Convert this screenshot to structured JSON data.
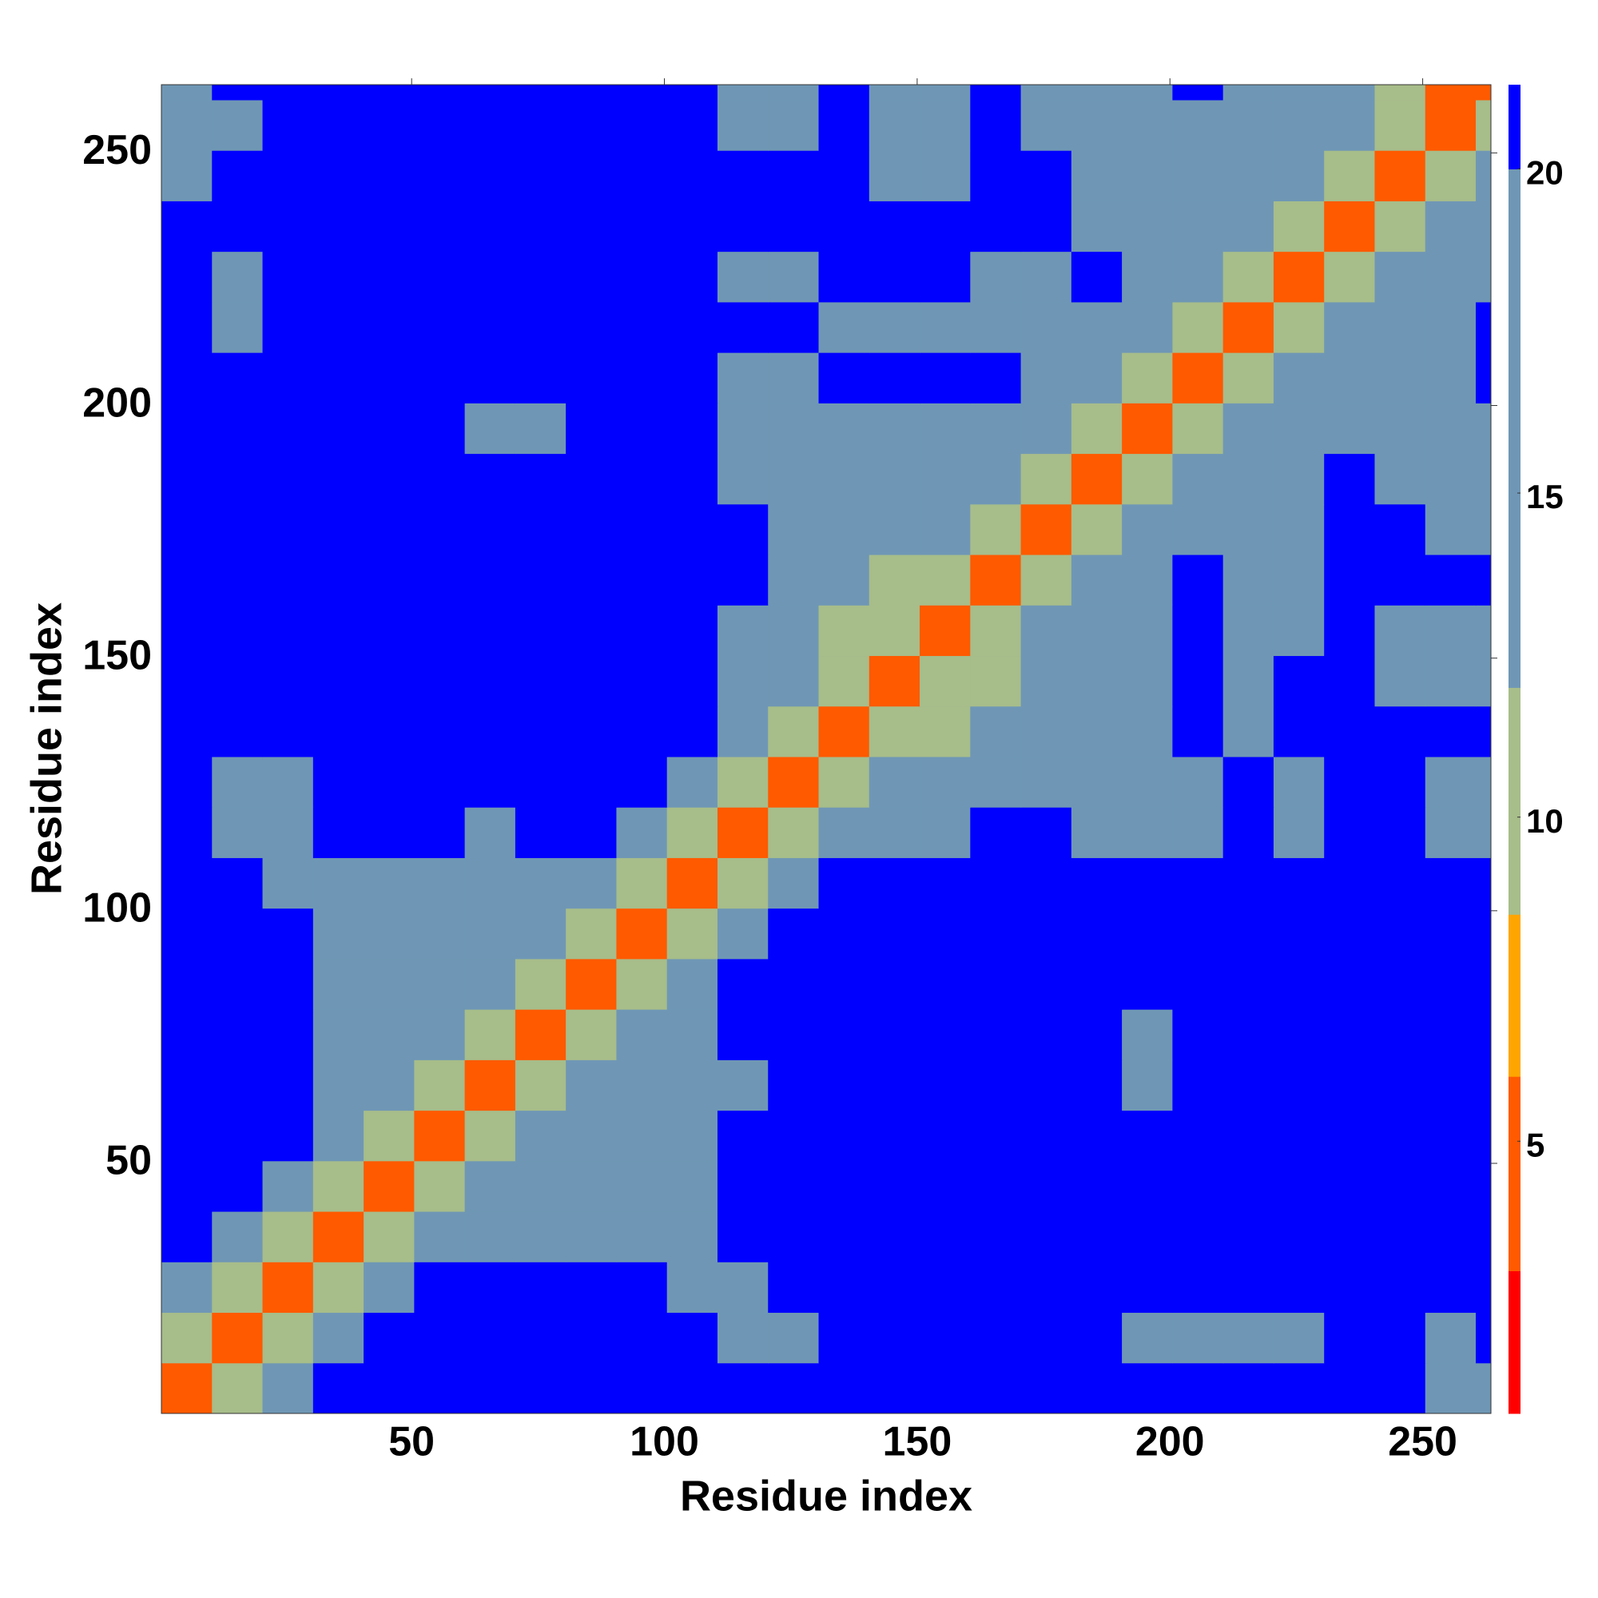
{
  "chart_data": {
    "type": "heatmap",
    "xlabel": "Residue index",
    "ylabel": "Residue index",
    "bins": [
      0.5,
      10.5,
      20.5,
      30.5,
      40.5,
      50.5,
      60.5,
      70.5,
      80.5,
      90.5,
      100.5,
      110.5,
      120.5,
      130.5,
      140.5,
      150.5,
      160.5,
      170.5,
      180.5,
      190.5,
      200.5,
      210.5,
      220.5,
      230.5,
      240.5,
      250.5,
      260.5,
      263.5
    ],
    "xlim": [
      0.5,
      263.5
    ],
    "ylim": [
      0.5,
      263.5
    ],
    "xticks": [
      50,
      100,
      150,
      200,
      250
    ],
    "yticks": [
      50,
      100,
      150,
      200,
      250
    ],
    "zlim": [
      0.8,
      21.3
    ],
    "zticks": [
      5,
      10,
      15,
      20
    ],
    "levels": [
      0.8,
      3,
      6,
      8.5,
      12,
      20,
      21.3
    ],
    "colors": [
      "#ff0000",
      "#ff5a00",
      "#ffa500",
      "#a7bd8a",
      "#6f97b5",
      "#0000ff"
    ],
    "values": [
      [
        4,
        9,
        15,
        21,
        21,
        21,
        21,
        21,
        21,
        21,
        21,
        21,
        21,
        21,
        21,
        21,
        21,
        21,
        21,
        21,
        21,
        21,
        21,
        21,
        21,
        18,
        18
      ],
      [
        9,
        4,
        9,
        15,
        21,
        21,
        21,
        21,
        21,
        21,
        21,
        13,
        13,
        21,
        21,
        21,
        21,
        21,
        21,
        19,
        19,
        19,
        18,
        21,
        21,
        18,
        21
      ],
      [
        15,
        9,
        4,
        9,
        14,
        21,
        21,
        21,
        21,
        21,
        15,
        13,
        21,
        21,
        21,
        21,
        21,
        21,
        21,
        21,
        21,
        21,
        21,
        21,
        21,
        21,
        21
      ],
      [
        21,
        15,
        9,
        4,
        9,
        13,
        13,
        14,
        15,
        16,
        14,
        21,
        21,
        21,
        21,
        21,
        21,
        21,
        21,
        21,
        21,
        21,
        21,
        21,
        21,
        21,
        21
      ],
      [
        21,
        21,
        14,
        9,
        4,
        9,
        13,
        13,
        14,
        14,
        15,
        21,
        21,
        21,
        21,
        21,
        21,
        21,
        21,
        21,
        21,
        21,
        21,
        21,
        21,
        21,
        21
      ],
      [
        21,
        21,
        21,
        13,
        9,
        4,
        9,
        13,
        13,
        14,
        15,
        21,
        21,
        21,
        21,
        21,
        21,
        21,
        21,
        21,
        21,
        21,
        21,
        21,
        21,
        21,
        21
      ],
      [
        21,
        21,
        21,
        13,
        13,
        9,
        4,
        9,
        13,
        14,
        15,
        16,
        21,
        21,
        21,
        21,
        21,
        21,
        21,
        15,
        21,
        21,
        21,
        21,
        21,
        21,
        21
      ],
      [
        21,
        21,
        21,
        14,
        13,
        13,
        9,
        4,
        9,
        13,
        14,
        21,
        21,
        21,
        21,
        21,
        21,
        21,
        21,
        18,
        21,
        21,
        21,
        21,
        21,
        21,
        21
      ],
      [
        21,
        21,
        21,
        15,
        14,
        13,
        13,
        9,
        4,
        9,
        13,
        21,
        21,
        21,
        21,
        21,
        21,
        21,
        21,
        21,
        21,
        21,
        21,
        21,
        21,
        21,
        21
      ],
      [
        21,
        21,
        21,
        16,
        14,
        14,
        14,
        13,
        9,
        4,
        9,
        14,
        21,
        21,
        21,
        21,
        21,
        21,
        21,
        21,
        21,
        21,
        21,
        21,
        21,
        21,
        21
      ],
      [
        21,
        21,
        14,
        14,
        15,
        15,
        15,
        14,
        13,
        9,
        4,
        9,
        15,
        21,
        21,
        21,
        21,
        21,
        21,
        21,
        21,
        21,
        21,
        21,
        21,
        21,
        21
      ],
      [
        21,
        13,
        14,
        21,
        21,
        21,
        16,
        21,
        21,
        14,
        9,
        4,
        9,
        14,
        15,
        16,
        21,
        21,
        15,
        15,
        16,
        21,
        15,
        21,
        21,
        16,
        16
      ],
      [
        21,
        13,
        16,
        21,
        21,
        21,
        21,
        21,
        21,
        21,
        15,
        9,
        4,
        9,
        13,
        14,
        15,
        16,
        15,
        16,
        17,
        21,
        15,
        21,
        21,
        16,
        16
      ],
      [
        21,
        21,
        21,
        21,
        21,
        21,
        21,
        21,
        21,
        21,
        21,
        14,
        9,
        4,
        9,
        12,
        14,
        15,
        16,
        16,
        21,
        16,
        21,
        21,
        21,
        21,
        21
      ],
      [
        21,
        21,
        21,
        21,
        21,
        21,
        21,
        21,
        21,
        21,
        21,
        15,
        13,
        9,
        4,
        9,
        12,
        15,
        14,
        15,
        21,
        16,
        21,
        21,
        18,
        18,
        18
      ],
      [
        21,
        21,
        21,
        21,
        21,
        21,
        21,
        21,
        21,
        21,
        21,
        16,
        14,
        12,
        9,
        4,
        9,
        14,
        15,
        15,
        21,
        16,
        16,
        21,
        18,
        18,
        18
      ],
      [
        21,
        21,
        21,
        21,
        21,
        21,
        21,
        21,
        21,
        21,
        21,
        21,
        15,
        14,
        12,
        9,
        4,
        9,
        15,
        16,
        21,
        16,
        15,
        21,
        21,
        21,
        21
      ],
      [
        21,
        21,
        21,
        21,
        21,
        21,
        21,
        21,
        21,
        21,
        21,
        21,
        16,
        15,
        15,
        14,
        9,
        4,
        9,
        15,
        16,
        15,
        15,
        21,
        21,
        16,
        16
      ],
      [
        21,
        21,
        21,
        21,
        21,
        21,
        21,
        21,
        21,
        21,
        21,
        15,
        15,
        16,
        14,
        15,
        15,
        9,
        4,
        9,
        15,
        15,
        13,
        21,
        16,
        16,
        16
      ],
      [
        21,
        21,
        21,
        21,
        21,
        21,
        15,
        18,
        21,
        21,
        21,
        15,
        16,
        16,
        15,
        15,
        16,
        15,
        9,
        4,
        9,
        15,
        15,
        16,
        15,
        15,
        16
      ],
      [
        21,
        21,
        21,
        21,
        21,
        21,
        21,
        21,
        21,
        21,
        21,
        16,
        17,
        21,
        21,
        21,
        21,
        16,
        15,
        9,
        4,
        9,
        14,
        15,
        16,
        16,
        21
      ],
      [
        21,
        19,
        21,
        21,
        21,
        21,
        21,
        21,
        21,
        21,
        21,
        21,
        21,
        16,
        16,
        16,
        15,
        15,
        13,
        15,
        9,
        4,
        9,
        14,
        15,
        16,
        21
      ],
      [
        21,
        19,
        21,
        21,
        21,
        21,
        21,
        21,
        21,
        21,
        21,
        15,
        15,
        21,
        21,
        21,
        15,
        15,
        21,
        15,
        14,
        9,
        4,
        9,
        14,
        15,
        16
      ],
      [
        21,
        21,
        21,
        21,
        21,
        21,
        21,
        21,
        21,
        21,
        21,
        21,
        21,
        21,
        21,
        21,
        21,
        21,
        16,
        16,
        15,
        14,
        9,
        4,
        9,
        14,
        15
      ],
      [
        18,
        21,
        21,
        21,
        21,
        21,
        21,
        21,
        21,
        21,
        21,
        21,
        21,
        21,
        18,
        18,
        21,
        21,
        16,
        15,
        16,
        15,
        14,
        9,
        4,
        9,
        14
      ],
      [
        18,
        18,
        21,
        21,
        21,
        21,
        21,
        21,
        21,
        21,
        21,
        16,
        16,
        21,
        18,
        18,
        21,
        16,
        16,
        15,
        16,
        16,
        15,
        14,
        9,
        4,
        9
      ],
      [
        18,
        21,
        21,
        21,
        21,
        21,
        21,
        21,
        21,
        21,
        21,
        16,
        16,
        21,
        18,
        18,
        21,
        16,
        16,
        16,
        21,
        16,
        15,
        14,
        9,
        4,
        4
      ]
    ]
  }
}
